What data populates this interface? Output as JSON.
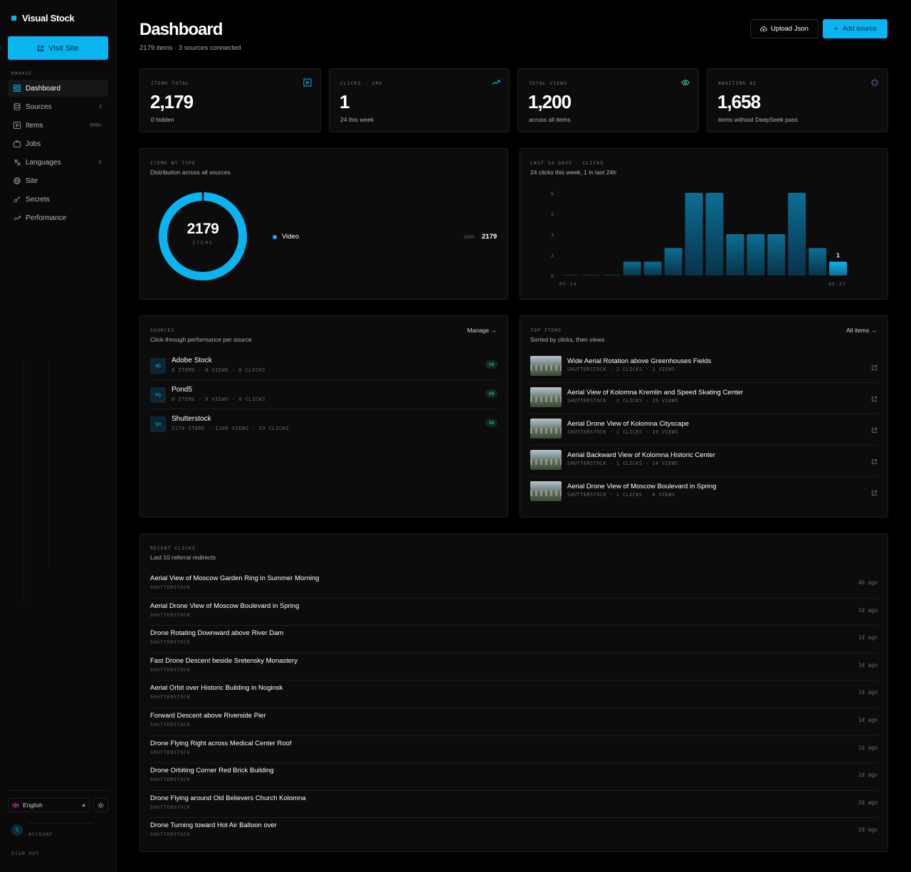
{
  "brand": {
    "name": "Visual Stock",
    "accent": "#0ab4f0"
  },
  "sidebar": {
    "visit_label": "Visit Site",
    "section": "MANAGE",
    "items": [
      {
        "label": "Dashboard",
        "icon": "grid-icon",
        "badge": ""
      },
      {
        "label": "Sources",
        "icon": "database-icon",
        "badge": "3"
      },
      {
        "label": "Items",
        "icon": "play-square-icon",
        "badge": "999+"
      },
      {
        "label": "Jobs",
        "icon": "briefcase-icon",
        "badge": ""
      },
      {
        "label": "Languages",
        "icon": "translate-icon",
        "badge": "6"
      },
      {
        "label": "Site",
        "icon": "globe-icon",
        "badge": ""
      },
      {
        "label": "Secrets",
        "icon": "key-icon",
        "badge": ""
      },
      {
        "label": "Performance",
        "icon": "trend-icon",
        "badge": ""
      }
    ],
    "language": "English",
    "account_initial": "S",
    "account_label": "ACCOUNT",
    "signout": "SIGN OUT"
  },
  "header": {
    "title": "Dashboard",
    "subtitle": "2179 items · 3 sources connected",
    "upload_label": "Upload Json",
    "add_label": "Add source"
  },
  "stats": [
    {
      "label": "ITEMS TOTAL",
      "value": "2,179",
      "note": "0 hidden",
      "icon": "play-square-icon",
      "color": "#0ab4f0"
    },
    {
      "label": "CLICKS · 24H",
      "value": "1",
      "note": "24 this week",
      "icon": "trend-up-icon",
      "color": "#0ab4f0"
    },
    {
      "label": "TOTAL VIEWS",
      "value": "1,200",
      "note": "across all items",
      "icon": "eye-icon",
      "color": "#2fd07a"
    },
    {
      "label": "AWAITING AI",
      "value": "1,658",
      "note": "items without DeepSeek pass",
      "icon": "sparkle-icon",
      "color": "#9b7bf0"
    }
  ],
  "by_type": {
    "label": "ITEMS BY TYPE",
    "sub": "Distribution across all sources",
    "center_value": "2179",
    "center_label": "ITEMS",
    "legend": [
      {
        "name": "Video",
        "pct": "100%",
        "count": "2179",
        "share": 1.0
      }
    ]
  },
  "clicks_chart": {
    "label": "LAST 14 DAYS · CLICKS",
    "sub": "24 clicks this week, 1 in last 24h",
    "first_label": "05-14",
    "last_label": "05-27",
    "last_value_label": "1"
  },
  "chart_data": {
    "type": "bar",
    "categories": [
      "05-14",
      "05-15",
      "05-16",
      "05-17",
      "05-18",
      "05-19",
      "05-20",
      "05-21",
      "05-22",
      "05-23",
      "05-24",
      "05-25",
      "05-26",
      "05-27"
    ],
    "values": [
      0,
      0,
      0,
      1,
      1,
      2,
      6,
      6,
      3,
      3,
      3,
      6,
      2,
      1
    ],
    "yticks": [
      "6",
      "5",
      "3",
      "2",
      "0"
    ],
    "ylim": [
      0,
      6
    ],
    "grid": false
  },
  "sources_panel": {
    "label": "SOURCES",
    "sub": "Click-through performance per source",
    "manage": "Manage →",
    "rows": [
      {
        "abbr": "AD",
        "name": "Adobe Stock",
        "meta": "0 ITEMS · 0 VIEWS · 0 CLICKS",
        "status": "ON"
      },
      {
        "abbr": "PO",
        "name": "Pond5",
        "meta": "0 ITEMS · 0 VIEWS · 0 CLICKS",
        "status": "ON"
      },
      {
        "abbr": "SH",
        "name": "Shutterstock",
        "meta": "2179 ITEMS · 1200 VIEWS · 33 CLICKS",
        "status": "ON"
      }
    ]
  },
  "top_items": {
    "label": "TOP ITEMS",
    "sub": "Sorted by clicks, then views",
    "all": "All items →",
    "rows": [
      {
        "title": "Wide Aerial Rotation above Greenhouses Fields",
        "meta": "SHUTTERSTOCK · 2 CLICKS · 2 VIEWS"
      },
      {
        "title": "Aerial View of Kolomna Kremlin and Speed Skating Center",
        "meta": "SHUTTERSTOCK · 1 CLICKS · 25 VIEWS"
      },
      {
        "title": "Aerial Drone View of Kolomna Cityscape",
        "meta": "SHUTTERSTOCK · 1 CLICKS · 19 VIEWS"
      },
      {
        "title": "Aerial Backward View of Kolomna Historic Center",
        "meta": "SHUTTERSTOCK · 1 CLICKS · 14 VIEWS"
      },
      {
        "title": "Aerial Drone View of Moscow Boulevard in Spring",
        "meta": "SHUTTERSTOCK · 1 CLICKS · 4 VIEWS"
      }
    ]
  },
  "recent_clicks": {
    "label": "RECENT CLICKS",
    "sub": "Last 10 referral redirects",
    "rows": [
      {
        "title": "Aerial View of Moscow Garden Ring in Summer Morning",
        "source": "SHUTTERSTOCK",
        "ago": "4h ago"
      },
      {
        "title": "Aerial Drone View of Moscow Boulevard in Spring",
        "source": "SHUTTERSTOCK",
        "ago": "1d ago"
      },
      {
        "title": "Drone Rotating Downward above River Dam",
        "source": "SHUTTERSTOCK",
        "ago": "1d ago"
      },
      {
        "title": "Fast Drone Descent beside Sretensky Monastery",
        "source": "SHUTTERSTOCK",
        "ago": "1d ago"
      },
      {
        "title": "Aerial Orbit over Historic Building in Noginsk",
        "source": "SHUTTERSTOCK",
        "ago": "1d ago"
      },
      {
        "title": "Forward Descent above Riverside Pier",
        "source": "SHUTTERSTOCK",
        "ago": "1d ago"
      },
      {
        "title": "Drone Flying Right across Medical Center Roof",
        "source": "SHUTTERSTOCK",
        "ago": "1d ago"
      },
      {
        "title": "Drone Orbiting Corner Red Brick Building",
        "source": "SHUTTERSTOCK",
        "ago": "2d ago"
      },
      {
        "title": "Drone Flying around Old Believers Church Kolomna",
        "source": "SHUTTERSTOCK",
        "ago": "2d ago"
      },
      {
        "title": "Drone Turning toward Hot Air Balloon over",
        "source": "SHUTTERSTOCK",
        "ago": "2d ago"
      }
    ]
  }
}
